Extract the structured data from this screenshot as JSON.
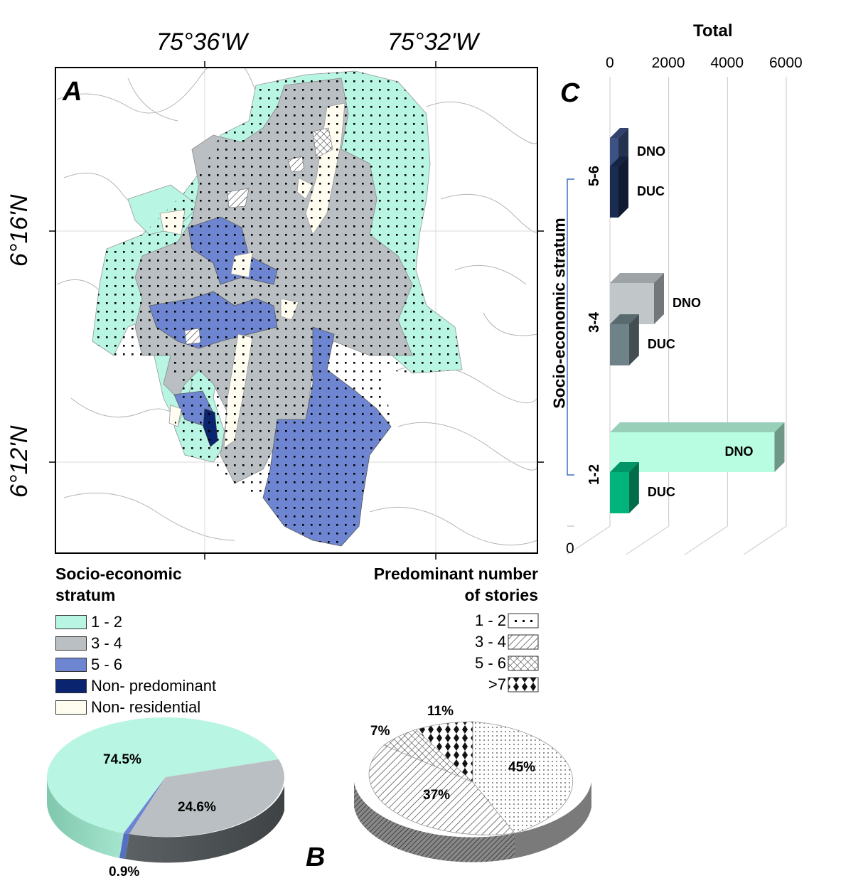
{
  "panels": {
    "map": "A",
    "pies": "B",
    "bars": "C"
  },
  "map": {
    "lon_labels": [
      "75°36'W",
      "75°32'W"
    ],
    "lat_labels": [
      "6°16'N",
      "6°12'N"
    ]
  },
  "legend_stratum": {
    "title_line1": "Socio-economic",
    "title_line2": "stratum",
    "items": [
      {
        "label": "1 - 2",
        "color": "#b8f5e2"
      },
      {
        "label": "3 - 4",
        "color": "#b9bfc2"
      },
      {
        "label": "5 - 6",
        "color": "#6e86d2"
      },
      {
        "label": "Non- predominant",
        "color": "#0a2470"
      },
      {
        "label": "Non- residential",
        "color": "#fefdf0"
      }
    ]
  },
  "legend_stories": {
    "title_line1": "Predominant number",
    "title_line2": "of stories",
    "items": [
      {
        "label": "1 - 2",
        "pattern": "dots"
      },
      {
        "label": "3 - 4",
        "pattern": "diagonal"
      },
      {
        "label": "5 - 6",
        "pattern": "crosshatch"
      },
      {
        "label": ">7",
        "pattern": "diamonds"
      }
    ]
  },
  "chart_data": [
    {
      "type": "pie",
      "slices": [
        {
          "label": "74.5%",
          "value": 74.5,
          "color": "#b8f5e2"
        },
        {
          "label": "24.6%",
          "value": 24.6,
          "color": "#b9bfc2"
        },
        {
          "label": "0.9%",
          "value": 0.9,
          "color": "#6e86d2"
        }
      ]
    },
    {
      "type": "pie",
      "slices": [
        {
          "label": "45%",
          "value": 45,
          "pattern": "dots"
        },
        {
          "label": "37%",
          "value": 37,
          "pattern": "diagonal"
        },
        {
          "label": "7%",
          "value": 7,
          "pattern": "crosshatch"
        },
        {
          "label": "11%",
          "value": 11,
          "pattern": "diamonds"
        }
      ]
    },
    {
      "type": "bar",
      "orientation": "horizontal",
      "title": "Total",
      "ylabel": "Socio-economic stratum",
      "categories": [
        "5-6",
        "3-4",
        "1-2"
      ],
      "x_ticks": [
        "0",
        "2000",
        "4000",
        "6000"
      ],
      "xlim": [
        0,
        6000
      ],
      "z_tick": "0",
      "series": [
        {
          "name": "DNO",
          "values": [
            80,
            1500,
            5600
          ],
          "colors": [
            "#3c5284",
            "#c1c7c9",
            "#b8fce2"
          ]
        },
        {
          "name": "DUC",
          "values": [
            80,
            650,
            650
          ],
          "colors": [
            "#1a2c52",
            "#6e8288",
            "#00b47c"
          ]
        }
      ]
    }
  ]
}
